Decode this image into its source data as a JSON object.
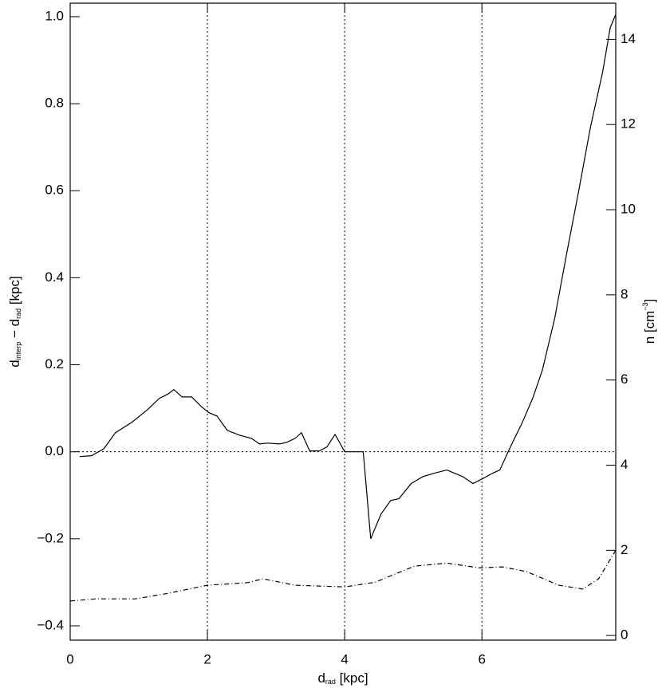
{
  "chart_data": {
    "type": "line",
    "xlabel": [
      "d",
      "rad",
      " [kpc]"
    ],
    "ylabel": [
      "d",
      "interp",
      " − d",
      "rad",
      " [kpc]"
    ],
    "y2label": [
      "n [cm",
      "−3",
      "]"
    ],
    "xlim": [
      0,
      7.95
    ],
    "ylim": [
      -0.433,
      1.031
    ],
    "y2lim": [
      -0.11,
      14.85
    ],
    "xticks": [
      0,
      2,
      4,
      6
    ],
    "yticks": [
      {
        "value": -0.4,
        "label": "−0.4"
      },
      {
        "value": -0.2,
        "label": "−0.2"
      },
      {
        "value": 0,
        "label": "0.0"
      },
      {
        "value": 0.2,
        "label": "0.2"
      },
      {
        "value": 0.4,
        "label": "0.4"
      },
      {
        "value": 0.6,
        "label": "0.6"
      },
      {
        "value": 0.8,
        "label": "0.8"
      },
      {
        "value": 1.0,
        "label": "1.0"
      }
    ],
    "y2ticks": [
      0,
      2,
      4,
      6,
      8,
      10,
      12,
      14
    ],
    "grid_x": true,
    "hlines": [
      0
    ],
    "series": [
      {
        "color": "#000000",
        "dash": "solid",
        "x": [
          0.14,
          0.31,
          0.49,
          0.66,
          0.9,
          1.13,
          1.3,
          1.42,
          1.51,
          1.63,
          1.77,
          1.91,
          2.02,
          2.14,
          2.29,
          2.47,
          2.64,
          2.76,
          2.87,
          3.05,
          3.16,
          3.28,
          3.37,
          3.49,
          3.63,
          3.74,
          3.86,
          4.0,
          4.27,
          4.38,
          4.53,
          4.67,
          4.79,
          4.97,
          5.14,
          5.31,
          5.49,
          5.72,
          5.87,
          6.01,
          6.16,
          6.26,
          6.42,
          6.59,
          6.74,
          6.88,
          7.06,
          7.23,
          7.41,
          7.58,
          7.76,
          7.87,
          7.95
        ],
        "values": [
          -0.011,
          -0.009,
          0.007,
          0.044,
          0.068,
          0.097,
          0.123,
          0.132,
          0.143,
          0.126,
          0.126,
          0.104,
          0.09,
          0.082,
          0.049,
          0.038,
          0.031,
          0.018,
          0.02,
          0.018,
          0.022,
          0.031,
          0.044,
          0.002,
          0.002,
          0.011,
          0.04,
          0,
          0,
          -0.2,
          -0.143,
          -0.112,
          -0.108,
          -0.073,
          -0.057,
          -0.049,
          -0.042,
          -0.057,
          -0.073,
          -0.062,
          -0.049,
          -0.042,
          0.013,
          0.068,
          0.123,
          0.187,
          0.306,
          0.452,
          0.599,
          0.745,
          0.874,
          0.975,
          1.005
        ]
      },
      {
        "color": "#000000",
        "dash": "dashdot",
        "axis": "y2",
        "x": [
          0,
          0.37,
          0.95,
          1.42,
          2.0,
          2.58,
          2.81,
          3.28,
          4.0,
          4.44,
          5.02,
          5.49,
          5.95,
          6.3,
          6.65,
          7.12,
          7.47,
          7.7,
          7.95
        ],
        "values": [
          0.81,
          0.86,
          0.86,
          0.99,
          1.18,
          1.24,
          1.33,
          1.18,
          1.14,
          1.25,
          1.63,
          1.7,
          1.59,
          1.61,
          1.5,
          1.18,
          1.09,
          1.33,
          2.0
        ]
      }
    ]
  }
}
